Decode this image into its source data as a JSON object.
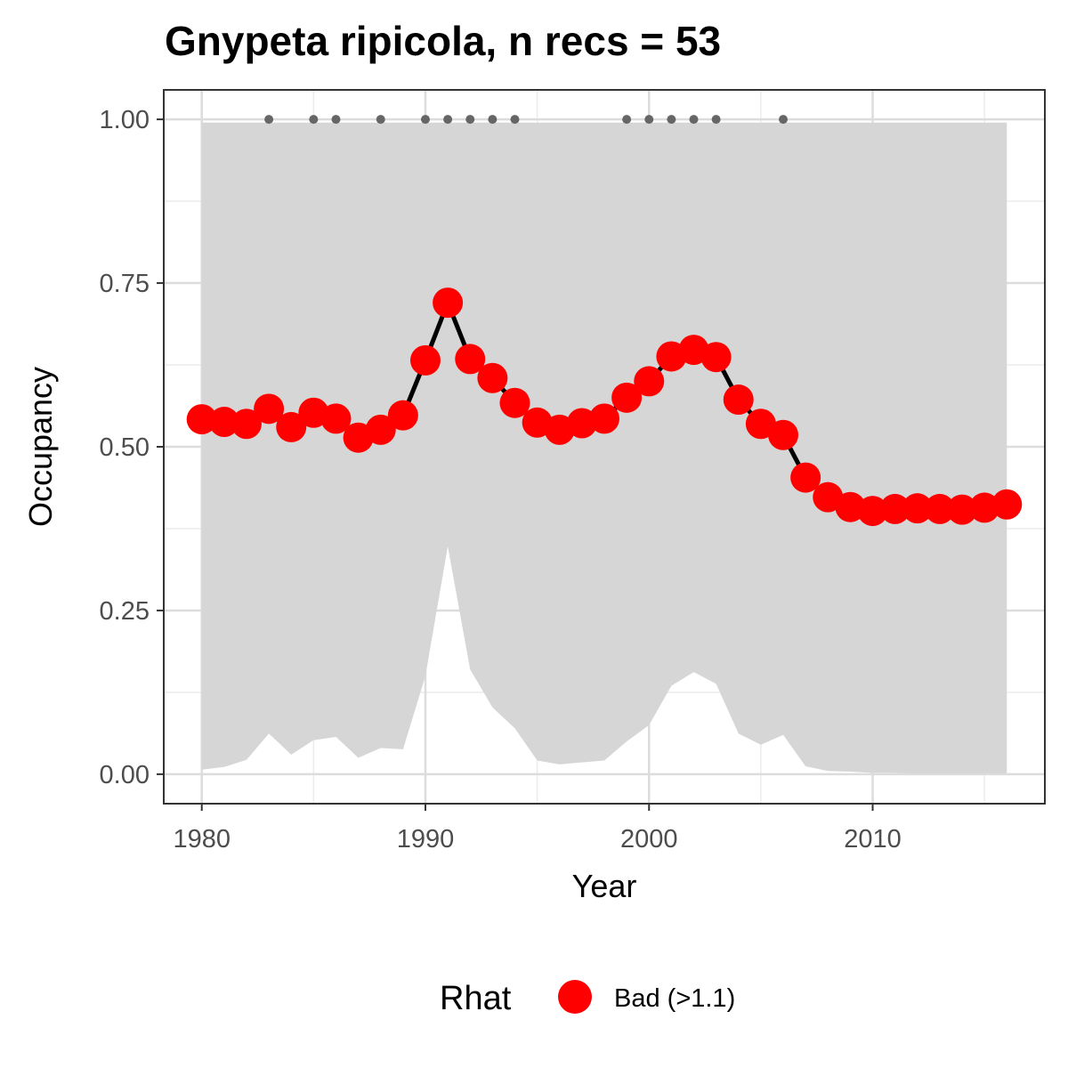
{
  "chart_data": {
    "type": "line",
    "title": "Gnypeta ripicola, n recs = 53",
    "xlabel": "Year",
    "ylabel": "Occupancy",
    "xlim": [
      1978.3,
      2017.7
    ],
    "ylim": [
      -0.045,
      1.045
    ],
    "x_ticks": [
      1980,
      1990,
      2000,
      2010
    ],
    "x_tick_labels": [
      "1980",
      "1990",
      "2000",
      "2010"
    ],
    "y_ticks": [
      0,
      0.25,
      0.5,
      0.75,
      1
    ],
    "y_tick_labels": [
      "0.00",
      "0.25",
      "0.50",
      "0.75",
      "1.00"
    ],
    "x_minor": [
      1985,
      1995,
      2005,
      2015
    ],
    "y_minor": [
      0.125,
      0.375,
      0.625,
      0.875
    ],
    "grid": true,
    "x": [
      1980,
      1981,
      1982,
      1983,
      1984,
      1985,
      1986,
      1987,
      1988,
      1989,
      1990,
      1991,
      1992,
      1993,
      1994,
      1995,
      1996,
      1997,
      1998,
      1999,
      2000,
      2001,
      2002,
      2003,
      2004,
      2005,
      2006,
      2007,
      2008,
      2009,
      2010,
      2011,
      2012,
      2013,
      2014,
      2015,
      2016
    ],
    "series": [
      {
        "values": [
          0.542,
          0.538,
          0.535,
          0.558,
          0.53,
          0.552,
          0.543,
          0.514,
          0.526,
          0.548,
          0.632,
          0.72,
          0.634,
          0.605,
          0.567,
          0.537,
          0.526,
          0.536,
          0.543,
          0.575,
          0.6,
          0.638,
          0.648,
          0.637,
          0.572,
          0.535,
          0.518,
          0.453,
          0.423,
          0.408,
          0.402,
          0.405,
          0.406,
          0.405,
          0.404,
          0.407,
          0.412
        ],
        "rhat": "Bad (>1.1)"
      }
    ],
    "ci_lower": [
      0.007,
      0.011,
      0.022,
      0.062,
      0.03,
      0.052,
      0.057,
      0.025,
      0.04,
      0.038,
      0.15,
      0.348,
      0.16,
      0.102,
      0.07,
      0.021,
      0.015,
      0.018,
      0.021,
      0.05,
      0.075,
      0.135,
      0.156,
      0.138,
      0.062,
      0.045,
      0.06,
      0.012,
      0.005,
      0.004,
      0.002,
      0.002,
      0.001,
      0.001,
      0.001,
      0.001,
      0.001
    ],
    "ci_upper": [
      0.995,
      0.995,
      0.995,
      0.995,
      0.995,
      0.995,
      0.995,
      0.995,
      0.995,
      0.995,
      0.995,
      0.995,
      0.995,
      0.995,
      0.995,
      0.995,
      0.995,
      0.995,
      0.995,
      0.995,
      0.995,
      0.995,
      0.995,
      0.995,
      0.995,
      0.995,
      0.995,
      0.995,
      0.995,
      0.995,
      0.995,
      0.995,
      0.995,
      0.995,
      0.995,
      0.995,
      0.995
    ],
    "record_years": [
      1983,
      1985,
      1986,
      1988,
      1990,
      1991,
      1992,
      1993,
      1994,
      1999,
      2000,
      2001,
      2002,
      2003,
      2006
    ],
    "record_y": 1.0,
    "legend": {
      "title": "Rhat",
      "entries": [
        {
          "label": "Bad (>1.1)",
          "color": "#ff0000"
        }
      ],
      "placement": "bottom"
    },
    "colors": {
      "point": "#ff0000",
      "line": "#000000",
      "ribbon": "#d6d6d6",
      "record_dot": "#666666",
      "grid_major": "#dcdcdc",
      "grid_minor": "#ececec",
      "panel_border": "#333333"
    }
  }
}
